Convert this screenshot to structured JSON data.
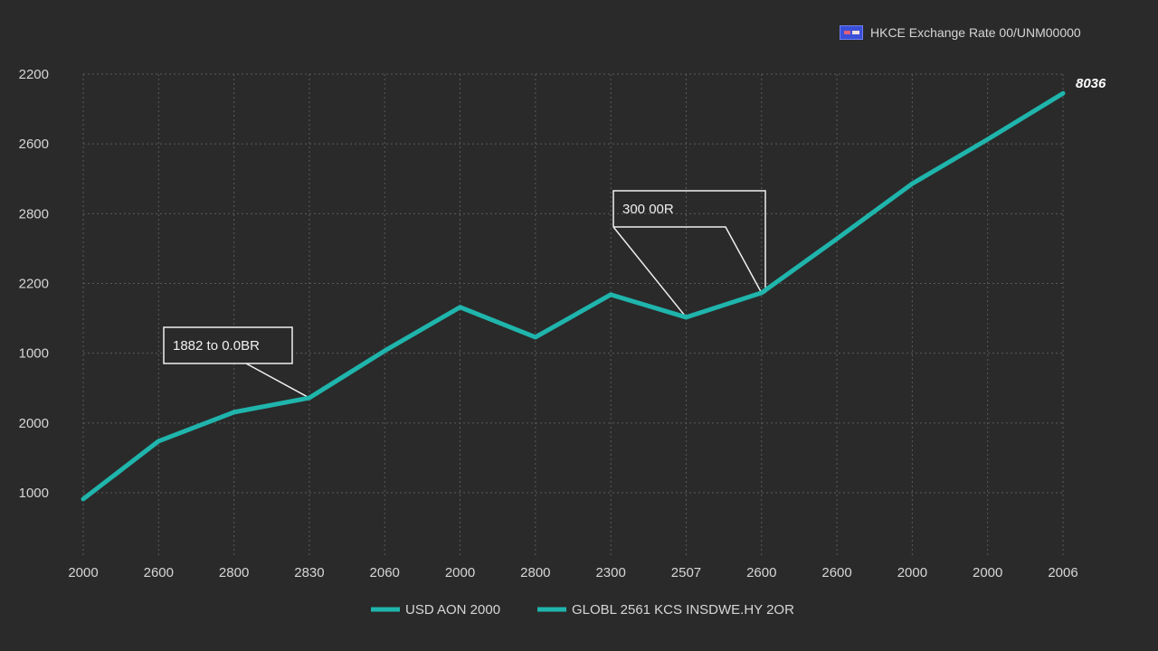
{
  "header": {
    "legend_icon": "flag-icon",
    "legend_label": "HKCE  Exchange Rate 00/UNM00000"
  },
  "colors": {
    "background": "#2a2a2a",
    "grid": "#5a5a5a",
    "line": "#1fb5ac",
    "text": "#d6d6d6",
    "annotation_border": "#f0f0f0",
    "flag_blue": "#3a4fd8"
  },
  "chart_data": {
    "type": "line",
    "title": "HKCE Exchange Rate 00/UNM00000",
    "xlabel": "",
    "ylabel": "",
    "grid": true,
    "legend_position": "bottom",
    "categories": [
      "2000",
      "2600",
      "2800",
      "2830",
      "2060",
      "2000",
      "2800",
      "2300",
      "2507",
      "2600",
      "2600",
      "2000",
      "2000",
      "2006"
    ],
    "x_tick_labels": [
      "2000",
      "2600",
      "2800",
      "2830",
      "2060",
      "2000",
      "2800",
      "2300",
      "2507",
      "2600",
      "2600",
      "2000",
      "2000",
      "2006"
    ],
    "y_tick_labels": [
      "2200",
      "2600",
      "2800",
      "2200",
      "1000",
      "2000",
      "1000"
    ],
    "ylim": [
      1000,
      2200
    ],
    "series": [
      {
        "name": "USD AON 2000",
        "color": "#1fb5ac",
        "values": [
          982,
          1148,
          1231,
          1272,
          1407,
          1532,
          1446,
          1568,
          1503,
          1573,
          1728,
          1886,
          2013,
          2145
        ]
      }
    ],
    "annotations": [
      {
        "text": "1882 to 0.0BR",
        "x_index": 3
      },
      {
        "text": "300 00R",
        "x_index": 8,
        "x_index2": 9
      },
      {
        "text": "8036",
        "x_index": 13
      }
    ],
    "legend": [
      "USD AON 2000",
      "GLOBL 2561 KCS INSDWE.HY 2OR"
    ]
  },
  "legend": {
    "items": [
      {
        "label": "USD AON 2000",
        "color": "#1fb5ac"
      },
      {
        "label": "GLOBL 2561 KCS INSDWE.HY 2OR",
        "color": "#1fb5ac"
      }
    ]
  },
  "annotations": {
    "left_box": "1882 to 0.0BR",
    "mid_box": "300 00R",
    "end_label": "8036"
  }
}
